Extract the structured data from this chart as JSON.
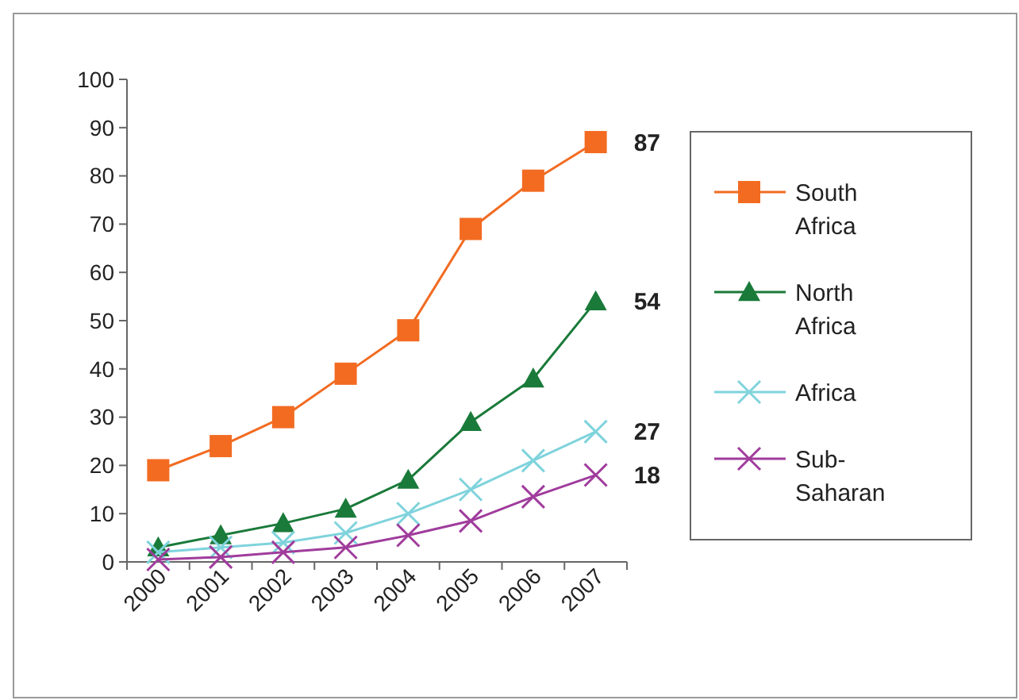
{
  "chart_data": {
    "type": "line",
    "categories": [
      "2000",
      "2001",
      "2002",
      "2003",
      "2004",
      "2005",
      "2006",
      "2007"
    ],
    "series": [
      {
        "name": "South Africa",
        "color": "#f26b21",
        "marker": "square",
        "values": [
          19,
          24,
          30,
          39,
          48,
          69,
          79,
          87
        ]
      },
      {
        "name": "North Africa",
        "color": "#1a7a3a",
        "marker": "triangle",
        "values": [
          3,
          5.5,
          8,
          11,
          17,
          29,
          38,
          54
        ]
      },
      {
        "name": "Africa",
        "color": "#7fd3dc",
        "marker": "cross",
        "values": [
          2,
          3,
          4,
          6,
          10,
          15,
          21,
          27
        ]
      },
      {
        "name": "Sub-Saharan",
        "color": "#a03c9c",
        "marker": "cross",
        "values": [
          0.5,
          1,
          2,
          3,
          5.5,
          8.5,
          13.5,
          18
        ]
      }
    ],
    "annotations": [
      {
        "text": "87",
        "x": "2007",
        "y": 87
      },
      {
        "text": "54",
        "x": "2007",
        "y": 54
      },
      {
        "text": "27",
        "x": "2007",
        "y": 27
      },
      {
        "text": "18",
        "x": "2007",
        "y": 18
      }
    ],
    "ylim": [
      0,
      100
    ],
    "yticks": [
      0,
      10,
      20,
      30,
      40,
      50,
      60,
      70,
      80,
      90,
      100
    ],
    "grid": false,
    "legend": "right"
  }
}
